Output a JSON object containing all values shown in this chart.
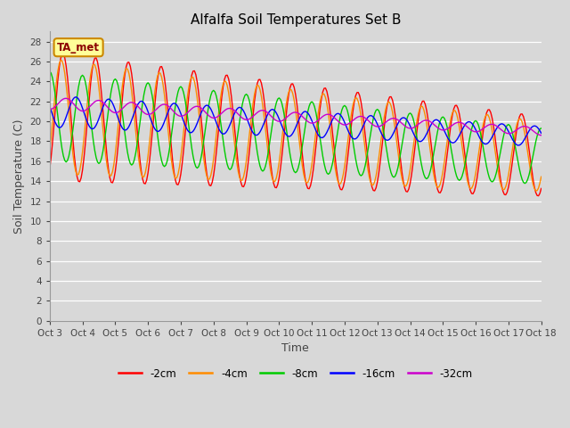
{
  "title": "Alfalfa Soil Temperatures Set B",
  "xlabel": "Time",
  "ylabel": "Soil Temperature (C)",
  "ylim": [
    0,
    29
  ],
  "yticks": [
    0,
    2,
    4,
    6,
    8,
    10,
    12,
    14,
    16,
    18,
    20,
    22,
    24,
    26,
    28
  ],
  "x_labels": [
    "Oct 3",
    "Oct 4",
    "Oct 5",
    "Oct 6",
    "Oct 7",
    "Oct 8",
    "Oct 9",
    "Oct 10",
    "Oct 11",
    "Oct 12",
    "Oct 13",
    "Oct 14",
    "Oct 15",
    "Oct 16",
    "Oct 17",
    "Oct 18"
  ],
  "series_colors": {
    "-2cm": "#ff0000",
    "-4cm": "#ff8c00",
    "-8cm": "#00cc00",
    "-16cm": "#0000ff",
    "-32cm": "#cc00cc"
  },
  "legend_labels": [
    "-2cm",
    "-4cm",
    "-8cm",
    "-16cm",
    "-32cm"
  ],
  "annotation_text": "TA_met",
  "annotation_bg": "#ffff99",
  "annotation_border": "#cc8800",
  "plot_bg": "#d8d8d8",
  "title_color": "#000000",
  "axis_label_color": "#444444"
}
